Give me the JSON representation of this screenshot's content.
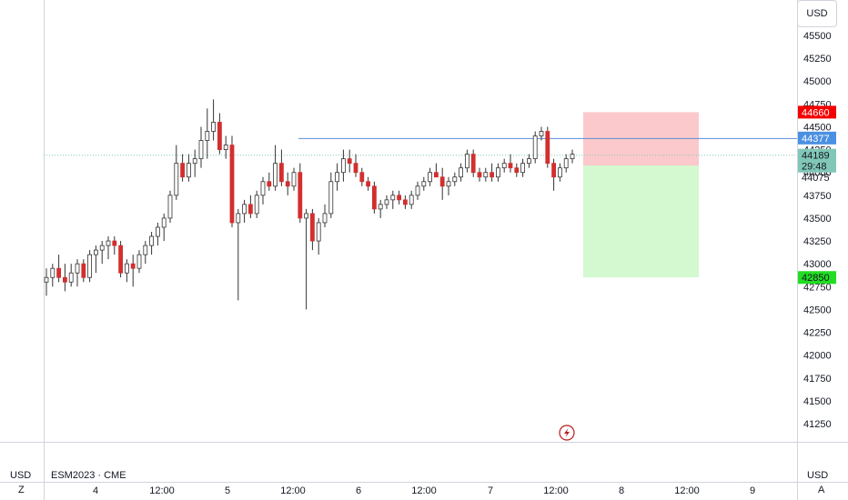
{
  "currency_top": "USD",
  "currency_bottom_left": "USD",
  "currency_bottom_right": "USD",
  "symbol_label": "ESM2023 · CME",
  "corner_left": "Z",
  "corner_right": "A",
  "colors": {
    "up": "#ffffff",
    "down": "#d32f2f",
    "wick": "#333333",
    "stop_zone": "#fbc9cb",
    "target_zone": "#d4f8d0",
    "level_line": "#5b8fd6",
    "last_price_bg": "#81c7b8",
    "stop_bg": "#f40000",
    "target_bg": "#22dd22",
    "level_bg": "#4a90e2"
  },
  "chart_data": {
    "type": "candlestick",
    "y_ticks": [
      41250,
      41500,
      41750,
      42000,
      42250,
      42500,
      42750,
      43000,
      43250,
      43500,
      43750,
      44000,
      44250,
      44500,
      44750,
      45000,
      45250,
      45500
    ],
    "x_ticks": [
      "4",
      "12:00",
      "5",
      "12:00",
      "6",
      "12:00",
      "7",
      "12:00",
      "8",
      "12:00",
      "9"
    ],
    "markers": {
      "stop": {
        "value": 44660,
        "label": "44660"
      },
      "level": {
        "value": 44377,
        "label": "44377"
      },
      "last": {
        "value": 44189,
        "label": "44189",
        "countdown": "29:48"
      },
      "low_mark": {
        "value": 44075,
        "label": "44075"
      },
      "target": {
        "value": 42850,
        "label": "42850"
      }
    },
    "candles": [
      [
        42800,
        42950,
        42650,
        42850
      ],
      [
        42850,
        43000,
        42750,
        42950
      ],
      [
        42950,
        43100,
        42800,
        42850
      ],
      [
        42850,
        43000,
        42700,
        42800
      ],
      [
        42800,
        43000,
        42750,
        42900
      ],
      [
        42900,
        43050,
        42750,
        43000
      ],
      [
        43000,
        43050,
        42800,
        42850
      ],
      [
        42850,
        43150,
        42800,
        43100
      ],
      [
        43100,
        43200,
        42900,
        43150
      ],
      [
        43150,
        43250,
        43000,
        43200
      ],
      [
        43200,
        43300,
        43050,
        43250
      ],
      [
        43250,
        43300,
        43100,
        43200
      ],
      [
        43200,
        43250,
        42850,
        42900
      ],
      [
        42900,
        43050,
        42800,
        43000
      ],
      [
        43000,
        43100,
        42750,
        42950
      ],
      [
        42950,
        43150,
        42900,
        43100
      ],
      [
        43100,
        43250,
        43000,
        43200
      ],
      [
        43200,
        43350,
        43100,
        43300
      ],
      [
        43300,
        43450,
        43200,
        43400
      ],
      [
        43400,
        43550,
        43250,
        43500
      ],
      [
        43500,
        43800,
        43450,
        43750
      ],
      [
        43750,
        44300,
        43700,
        44100
      ],
      [
        44100,
        44200,
        43900,
        43950
      ],
      [
        43950,
        44200,
        43900,
        44100
      ],
      [
        44100,
        44250,
        43950,
        44150
      ],
      [
        44150,
        44500,
        44050,
        44350
      ],
      [
        44350,
        44700,
        44150,
        44450
      ],
      [
        44450,
        44800,
        44350,
        44550
      ],
      [
        44550,
        44650,
        44200,
        44250
      ],
      [
        44250,
        44400,
        44150,
        44300
      ],
      [
        44300,
        44400,
        43400,
        43450
      ],
      [
        43450,
        43600,
        42600,
        43550
      ],
      [
        43550,
        43700,
        43450,
        43650
      ],
      [
        43650,
        43750,
        43500,
        43550
      ],
      [
        43550,
        43800,
        43500,
        43750
      ],
      [
        43750,
        43950,
        43650,
        43900
      ],
      [
        43900,
        44000,
        43800,
        43850
      ],
      [
        43850,
        44300,
        43800,
        44100
      ],
      [
        44100,
        44250,
        43850,
        43900
      ],
      [
        43900,
        44000,
        43750,
        43850
      ],
      [
        43850,
        44050,
        43800,
        44000
      ],
      [
        44000,
        44100,
        43450,
        43500
      ],
      [
        43500,
        43600,
        42500,
        43550
      ],
      [
        43550,
        43600,
        43150,
        43250
      ],
      [
        43250,
        43500,
        43100,
        43450
      ],
      [
        43450,
        43650,
        43400,
        43550
      ],
      [
        43550,
        44000,
        43500,
        43900
      ],
      [
        43900,
        44100,
        43800,
        44000
      ],
      [
        44000,
        44250,
        43900,
        44150
      ],
      [
        44150,
        44250,
        44000,
        44100
      ],
      [
        44100,
        44200,
        43950,
        44000
      ],
      [
        44000,
        44050,
        43850,
        43900
      ],
      [
        43900,
        43950,
        43800,
        43850
      ],
      [
        43850,
        43900,
        43550,
        43600
      ],
      [
        43600,
        43700,
        43500,
        43650
      ],
      [
        43650,
        43750,
        43600,
        43700
      ],
      [
        43700,
        43800,
        43600,
        43750
      ],
      [
        43750,
        43800,
        43650,
        43700
      ],
      [
        43700,
        43750,
        43600,
        43650
      ],
      [
        43650,
        43800,
        43600,
        43750
      ],
      [
        43750,
        43900,
        43700,
        43850
      ],
      [
        43850,
        43950,
        43800,
        43900
      ],
      [
        43900,
        44050,
        43850,
        44000
      ],
      [
        44000,
        44100,
        43950,
        43950
      ],
      [
        43950,
        44050,
        43700,
        43850
      ],
      [
        43850,
        43950,
        43750,
        43900
      ],
      [
        43900,
        44000,
        43850,
        43950
      ],
      [
        43950,
        44100,
        43900,
        44050
      ],
      [
        44050,
        44250,
        44000,
        44200
      ],
      [
        44200,
        44250,
        43950,
        44000
      ],
      [
        44000,
        44050,
        43900,
        43950
      ],
      [
        43950,
        44050,
        43900,
        44000
      ],
      [
        44000,
        44100,
        43900,
        43950
      ],
      [
        43950,
        44100,
        43900,
        44050
      ],
      [
        44050,
        44150,
        44000,
        44100
      ],
      [
        44100,
        44200,
        44000,
        44050
      ],
      [
        44050,
        44100,
        43950,
        44000
      ],
      [
        44000,
        44150,
        43950,
        44100
      ],
      [
        44100,
        44200,
        44050,
        44150
      ],
      [
        44150,
        44450,
        44100,
        44400
      ],
      [
        44400,
        44500,
        44350,
        44450
      ],
      [
        44450,
        44500,
        44050,
        44100
      ],
      [
        44100,
        44150,
        43800,
        43950
      ],
      [
        43950,
        44100,
        43900,
        44050
      ],
      [
        44050,
        44200,
        44000,
        44150
      ],
      [
        44150,
        44250,
        44100,
        44200
      ]
    ]
  }
}
